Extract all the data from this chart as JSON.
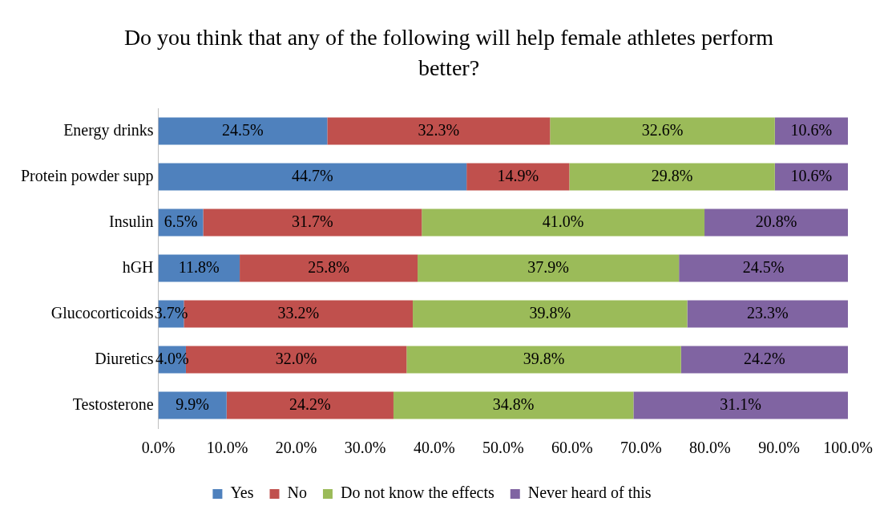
{
  "chart_data": {
    "type": "bar",
    "orientation": "horizontal",
    "stacked": true,
    "title": "Do you think that any of the following will help female athletes perform better?",
    "categories": [
      "Energy drinks",
      "Protein powder supp",
      "Insulin",
      "hGH",
      "Glucocorticoids",
      "Diuretics",
      "Testosterone"
    ],
    "series": [
      {
        "name": "Yes",
        "color": "#4f81bd",
        "values": [
          24.5,
          44.7,
          6.5,
          11.8,
          3.7,
          4.0,
          9.9
        ],
        "value_labels": [
          "24.5%",
          "44.7%",
          "6.5%",
          "11.8%",
          "3.7%",
          "4.0%",
          "9.9%"
        ]
      },
      {
        "name": "No",
        "color": "#c0504d",
        "values": [
          32.3,
          14.9,
          31.7,
          25.8,
          33.2,
          32.0,
          24.2
        ],
        "value_labels": [
          "32.3%",
          "14.9%",
          "31.7%",
          "25.8%",
          "33.2%",
          "32.0%",
          "24.2%"
        ]
      },
      {
        "name": "Do not know the effects",
        "color": "#9bbb59",
        "values": [
          32.6,
          29.8,
          41.0,
          37.9,
          39.8,
          39.8,
          34.8
        ],
        "value_labels": [
          "32.6%",
          "29.8%",
          "41.0%",
          "37.9%",
          "39.8%",
          "39.8%",
          "34.8%"
        ]
      },
      {
        "name": "Never heard of this",
        "color": "#8064a2",
        "values": [
          10.6,
          10.6,
          20.8,
          24.5,
          23.3,
          24.2,
          31.1
        ],
        "value_labels": [
          "10.6%",
          "10.6%",
          "20.8%",
          "24.5%",
          "23.3%",
          "24.2%",
          "31.1%"
        ]
      }
    ],
    "xlim": [
      0,
      100
    ],
    "xticks": [
      {
        "value": 0,
        "label": "0.0%"
      },
      {
        "value": 10,
        "label": "10.0%"
      },
      {
        "value": 20,
        "label": "20.0%"
      },
      {
        "value": 30,
        "label": "30.0%"
      },
      {
        "value": 40,
        "label": "40.0%"
      },
      {
        "value": 50,
        "label": "50.0%"
      },
      {
        "value": 60,
        "label": "60.0%"
      },
      {
        "value": 70,
        "label": "70.0%"
      },
      {
        "value": 80,
        "label": "80.0%"
      },
      {
        "value": 90,
        "label": "90.0%"
      },
      {
        "value": 100,
        "label": "100.0%"
      }
    ],
    "legend": "bottom"
  }
}
